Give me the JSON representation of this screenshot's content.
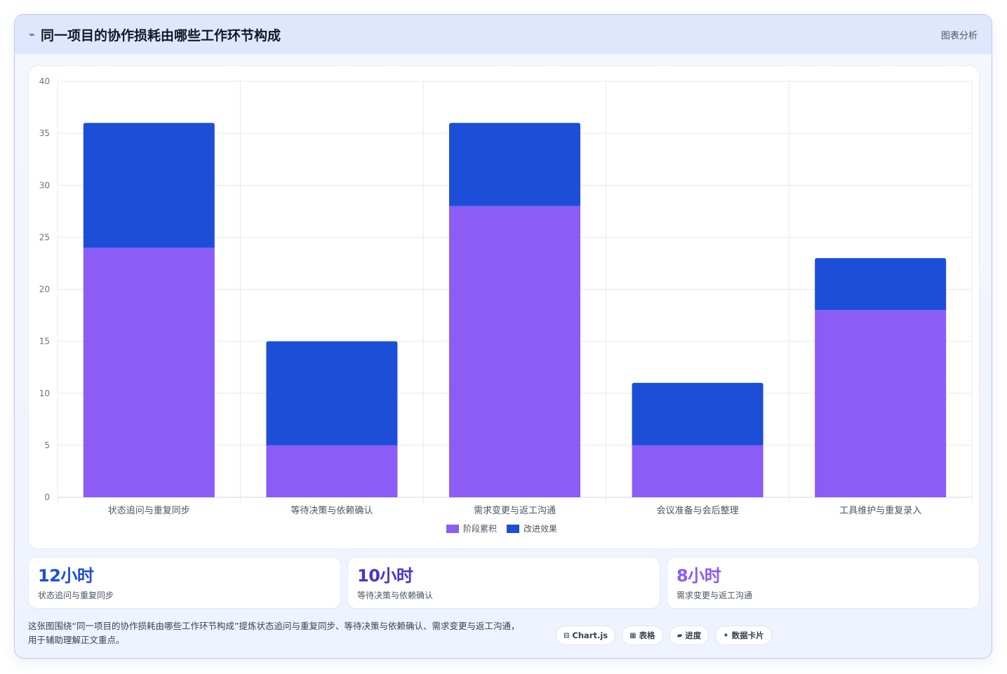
{
  "header": {
    "title": "同一项目的协作损耗由哪些工作环节构成",
    "tag": "图表分析"
  },
  "chart_data": {
    "type": "bar",
    "stacked": true,
    "categories": [
      "状态追问与重复同步",
      "等待决策与依赖确认",
      "需求变更与返工沟通",
      "会议准备与会后整理",
      "工具维护与重复录入"
    ],
    "series": [
      {
        "name": "阶段累积",
        "values": [
          24,
          5,
          28,
          5,
          18
        ],
        "color": "#8b5cf6"
      },
      {
        "name": "改进效果",
        "values": [
          12,
          10,
          8,
          6,
          5
        ],
        "color": "#1d4ed8"
      }
    ],
    "ylim": [
      0,
      40
    ],
    "yticks": [
      0,
      5,
      10,
      15,
      20,
      25,
      30,
      35,
      40
    ],
    "grid": true,
    "legend_position": "bottom"
  },
  "stats": [
    {
      "value": "12小时",
      "label": "状态追问与重复同步",
      "color": "#1d4ed8"
    },
    {
      "value": "10小时",
      "label": "等待决策与依赖确认",
      "color": "#4338ca"
    },
    {
      "value": "8小时",
      "label": "需求变更与返工沟通",
      "color": "#8b5cf6"
    }
  ],
  "footer": {
    "description_line1": "这张图围绕“同一项目的协作损耗由哪些工作环节构成”提炼状态追问与重复同步、等待决策与依赖确认、需求变更与返工沟通，",
    "description_line2": "用于辅助理解正文重点。",
    "badges": [
      {
        "icon": "chart-icon",
        "label": "Chart.js"
      },
      {
        "icon": "table-icon",
        "label": "表格"
      },
      {
        "icon": "progress-icon",
        "label": "进度"
      },
      {
        "icon": "sparkle-icon",
        "label": "数据卡片"
      }
    ]
  }
}
